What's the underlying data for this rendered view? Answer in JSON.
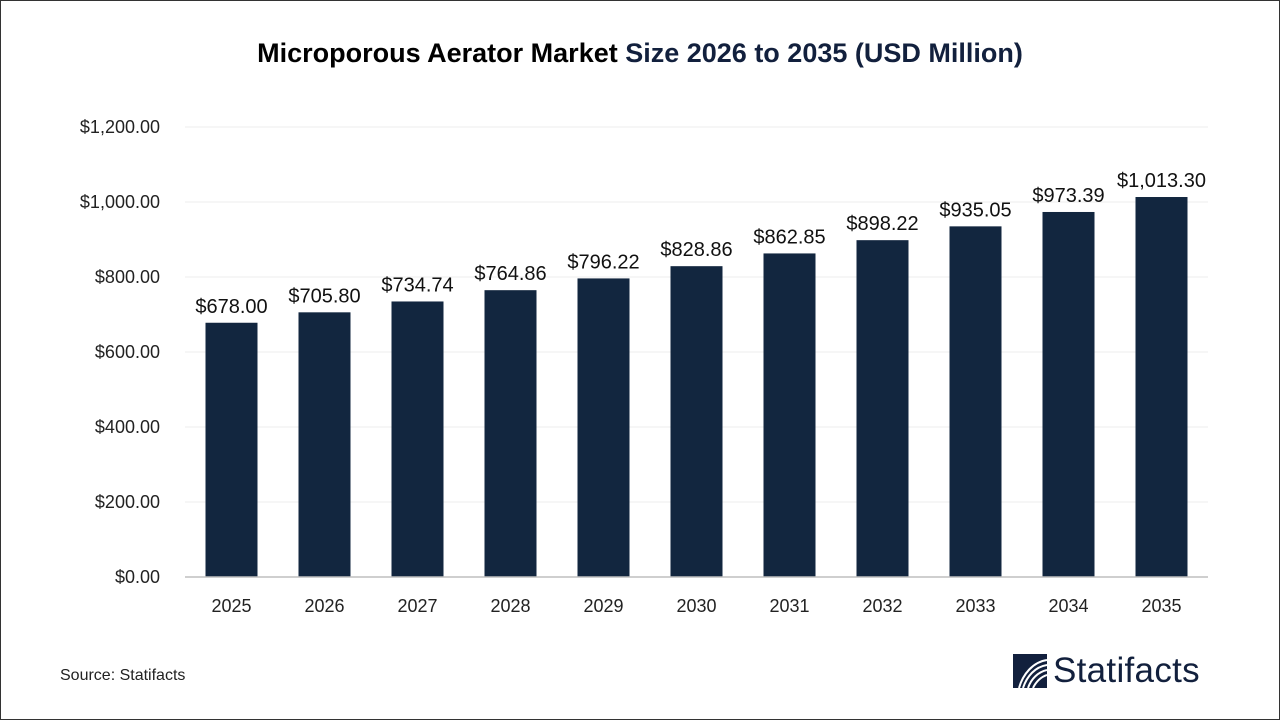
{
  "title": {
    "part1": "Microporous Aerator Market ",
    "part2": "Size 2026 to 2035 (USD Million)"
  },
  "source": "Source: Statifacts",
  "logo_text": "Statifacts",
  "colors": {
    "bar": "#12263f",
    "title_accent": "#12203d",
    "grid": "#ececec",
    "axis": "#bfbfbf"
  },
  "chart_data": {
    "type": "bar",
    "title": "Microporous Aerator Market Size 2026 to 2035 (USD Million)",
    "categories": [
      "2025",
      "2026",
      "2027",
      "2028",
      "2029",
      "2030",
      "2031",
      "2032",
      "2033",
      "2034",
      "2035"
    ],
    "values": [
      678.0,
      705.8,
      734.74,
      764.86,
      796.22,
      828.86,
      862.85,
      898.22,
      935.05,
      973.39,
      1013.3
    ],
    "data_labels": [
      "$678.00",
      "$705.80",
      "$734.74",
      "$764.86",
      "$796.22",
      "$828.86",
      "$862.85",
      "$898.22",
      "$935.05",
      "$973.39",
      "$1,013.30"
    ],
    "yticks": [
      0,
      200,
      400,
      600,
      800,
      1000,
      1200
    ],
    "ytick_labels": [
      "$0.00",
      "$200.00",
      "$400.00",
      "$600.00",
      "$800.00",
      "$1,000.00",
      "$1,200.00"
    ],
    "ylim": [
      0,
      1200
    ],
    "xlabel": "",
    "ylabel": "",
    "grid": true,
    "legend": "none"
  }
}
